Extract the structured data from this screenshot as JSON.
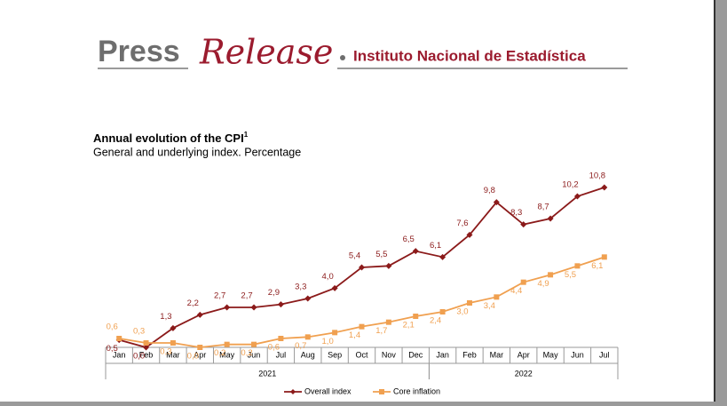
{
  "header": {
    "press": "Press",
    "release": "Release",
    "institute": "Instituto Nacional de Estadística"
  },
  "chart_data": {
    "type": "line",
    "title": "Annual evolution of the CPI",
    "title_note": "1",
    "subtitle": "General and underlying index. Percentage",
    "categories": [
      "Jan",
      "Feb",
      "Mar",
      "Apr",
      "May",
      "Jun",
      "Jul",
      "Aug",
      "Sep",
      "Oct",
      "Nov",
      "Dec",
      "Jan",
      "Feb",
      "Mar",
      "Apr",
      "May",
      "Jun",
      "Jul"
    ],
    "groups": [
      {
        "label": "2021",
        "count": 12
      },
      {
        "label": "2022",
        "count": 7
      }
    ],
    "series": [
      {
        "name": "Overall index",
        "color": "#8b1a1a",
        "values": [
          0.5,
          0.0,
          1.3,
          2.2,
          2.7,
          2.7,
          2.9,
          3.3,
          4.0,
          5.4,
          5.5,
          6.5,
          6.1,
          7.6,
          9.8,
          8.3,
          8.7,
          10.2,
          10.8
        ],
        "value_labels": [
          "0,5",
          "0,0",
          "1,3",
          "2,2",
          "2,7",
          "2,7",
          "2,9",
          "3,3",
          "4,0",
          "5,4",
          "5,5",
          "6,5",
          "6,1",
          "7,6",
          "9,8",
          "8,3",
          "8,7",
          "10,2",
          "10,8"
        ]
      },
      {
        "name": "Core inflation",
        "color": "#f0a050",
        "values": [
          0.6,
          0.3,
          0.3,
          0.0,
          0.2,
          0.2,
          0.6,
          0.7,
          1.0,
          1.4,
          1.7,
          2.1,
          2.4,
          3.0,
          3.4,
          4.4,
          4.9,
          5.5,
          6.1
        ],
        "value_labels": [
          "0,6",
          "0,3",
          "0,3",
          "0,0",
          "0,2",
          "0,2",
          "0,6",
          "0,7",
          "1,0",
          "1,4",
          "1,7",
          "2,1",
          "2,4",
          "3,0",
          "3,4",
          "4,4",
          "4,9",
          "5,5",
          "6,1"
        ]
      }
    ]
  }
}
